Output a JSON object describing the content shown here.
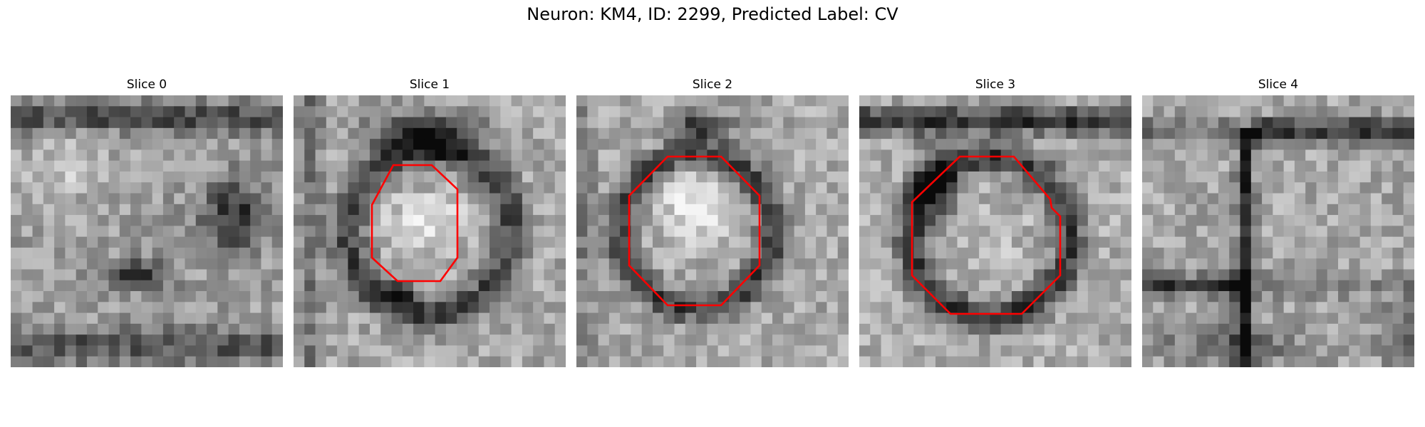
{
  "figure": {
    "title": "Neuron: KM4, ID: 2299, Predicted Label: CV"
  },
  "panels": [
    {
      "title": "Slice 0",
      "outline": false
    },
    {
      "title": "Slice 1",
      "outline": true
    },
    {
      "title": "Slice 2",
      "outline": true
    },
    {
      "title": "Slice 3",
      "outline": true
    },
    {
      "title": "Slice 4",
      "outline": false
    }
  ],
  "colors": {
    "outline": "#ff0000"
  }
}
